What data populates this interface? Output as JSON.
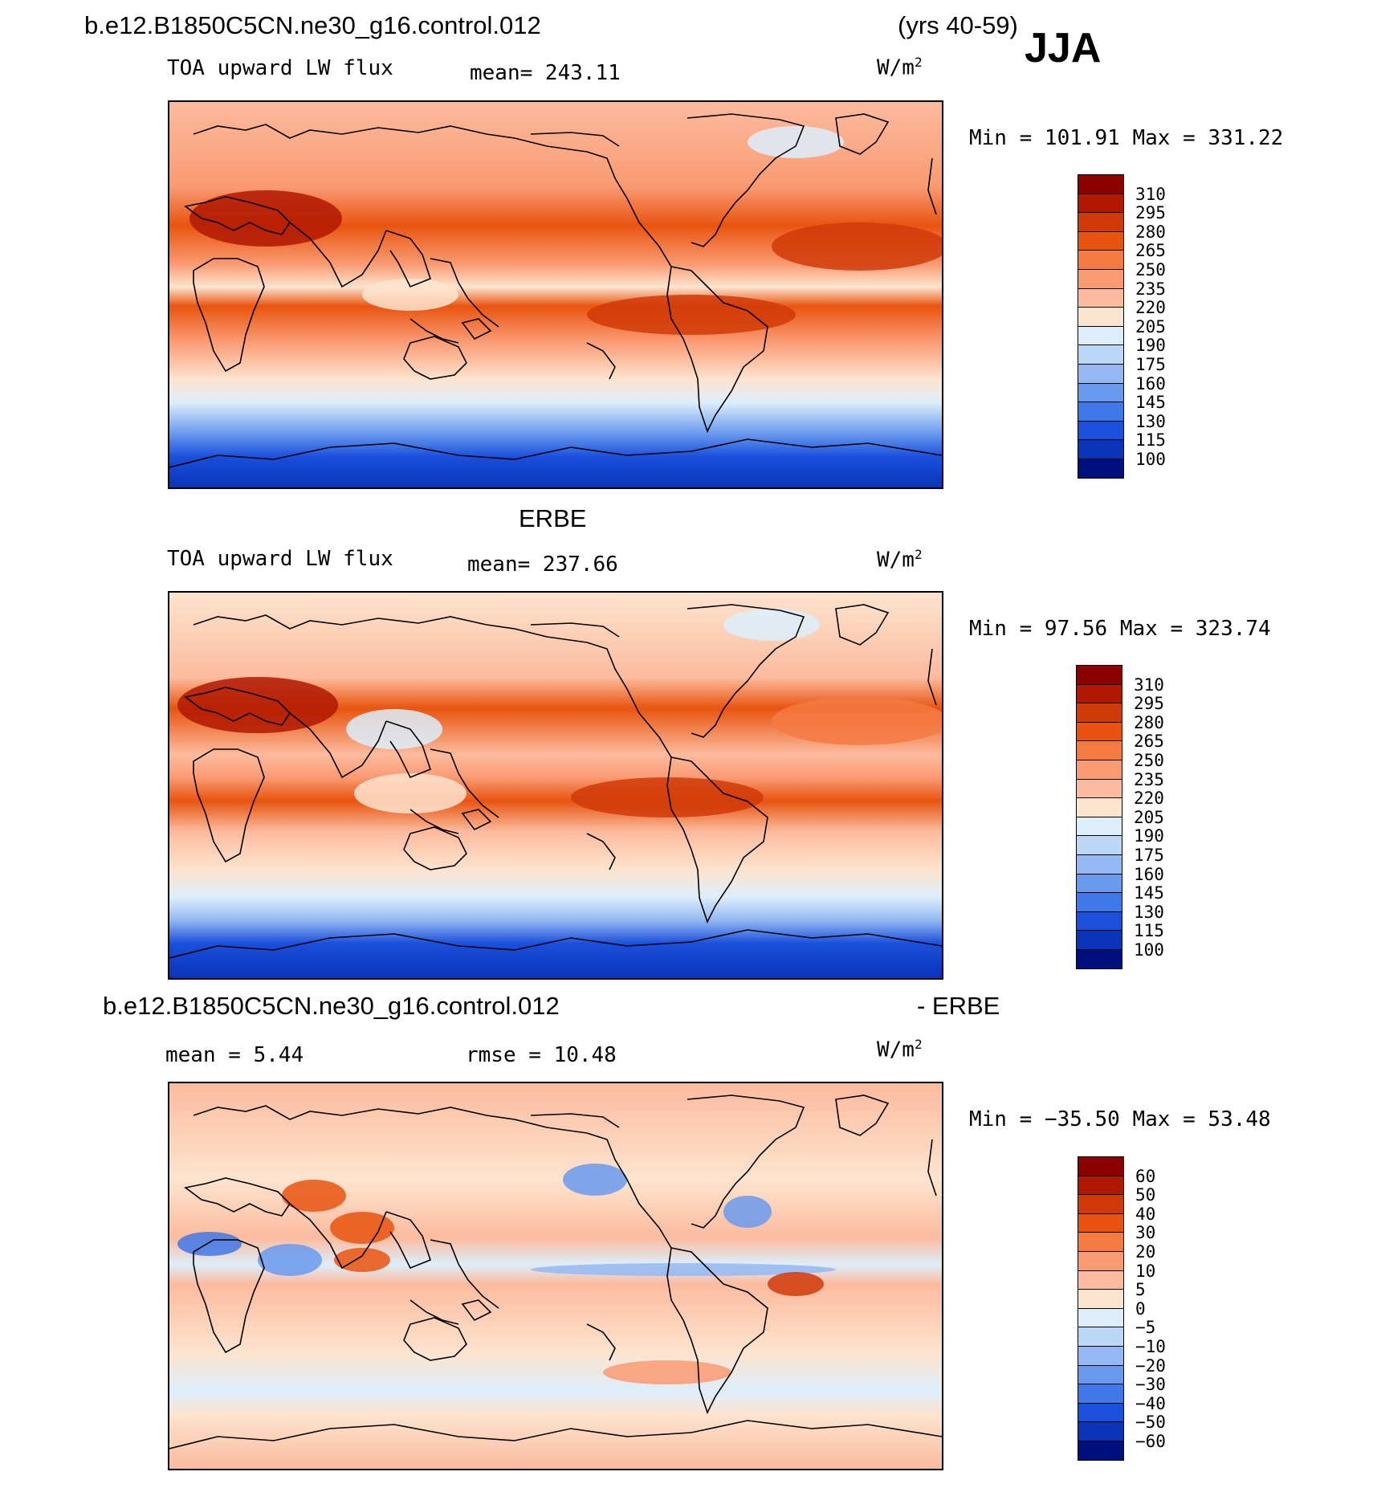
{
  "header": {
    "case_name": "b.e12.B1850C5CN.ne30_g16.control.012",
    "years": "(yrs 40-59)",
    "season": "JJA"
  },
  "panels": [
    {
      "id": "model",
      "title": "",
      "variable": "TOA upward LW flux",
      "mean_text": "mean= 243.11",
      "units": "W/m",
      "units_sup": "2",
      "minmax": "Min = 101.91 Max = 331.22",
      "colorbar": {
        "labels": [
          "310",
          "295",
          "280",
          "265",
          "250",
          "235",
          "220",
          "205",
          "190",
          "175",
          "160",
          "145",
          "130",
          "115",
          "100"
        ],
        "colors": [
          "#8c0000",
          "#b01800",
          "#d03a08",
          "#e8540f",
          "#f47a43",
          "#fa9a72",
          "#fcbb9e",
          "#fde4cf",
          "#dceefb",
          "#bdd7f7",
          "#94b8f2",
          "#6a9aee",
          "#3f78e8",
          "#1a50dc",
          "#0a33b8",
          "#000f80"
        ]
      }
    },
    {
      "id": "obs",
      "title": "ERBE",
      "variable": "TOA upward LW flux",
      "mean_text": "mean= 237.66",
      "units": "W/m",
      "units_sup": "2",
      "minmax": "Min =  97.56 Max = 323.74",
      "colorbar": {
        "labels": [
          "310",
          "295",
          "280",
          "265",
          "250",
          "235",
          "220",
          "205",
          "190",
          "175",
          "160",
          "145",
          "130",
          "115",
          "100"
        ],
        "colors": [
          "#8c0000",
          "#b01800",
          "#d03a08",
          "#e8540f",
          "#f47a43",
          "#fa9a72",
          "#fcbb9e",
          "#fde4cf",
          "#dceefb",
          "#bdd7f7",
          "#94b8f2",
          "#6a9aee",
          "#3f78e8",
          "#1a50dc",
          "#0a33b8",
          "#000f80"
        ]
      }
    },
    {
      "id": "diff",
      "title_left": "b.e12.B1850C5CN.ne30_g16.control.012",
      "title_right": "- ERBE",
      "mean_text": "mean =    5.44",
      "rmse_text": "rmse =   10.48",
      "units": "W/m",
      "units_sup": "2",
      "minmax": "Min = −35.50 Max =  53.48",
      "colorbar": {
        "labels": [
          "60",
          "50",
          "40",
          "30",
          "20",
          "10",
          "5",
          "0",
          "−5",
          "−10",
          "−20",
          "−30",
          "−40",
          "−50",
          "−60"
        ],
        "colors": [
          "#8c0000",
          "#b01800",
          "#d03a08",
          "#e8540f",
          "#f47a43",
          "#fa9a72",
          "#fcbb9e",
          "#fde4cf",
          "#dceefb",
          "#bdd7f7",
          "#94b8f2",
          "#6a9aee",
          "#3f78e8",
          "#1a50dc",
          "#0a33b8",
          "#000f80"
        ]
      }
    }
  ]
}
